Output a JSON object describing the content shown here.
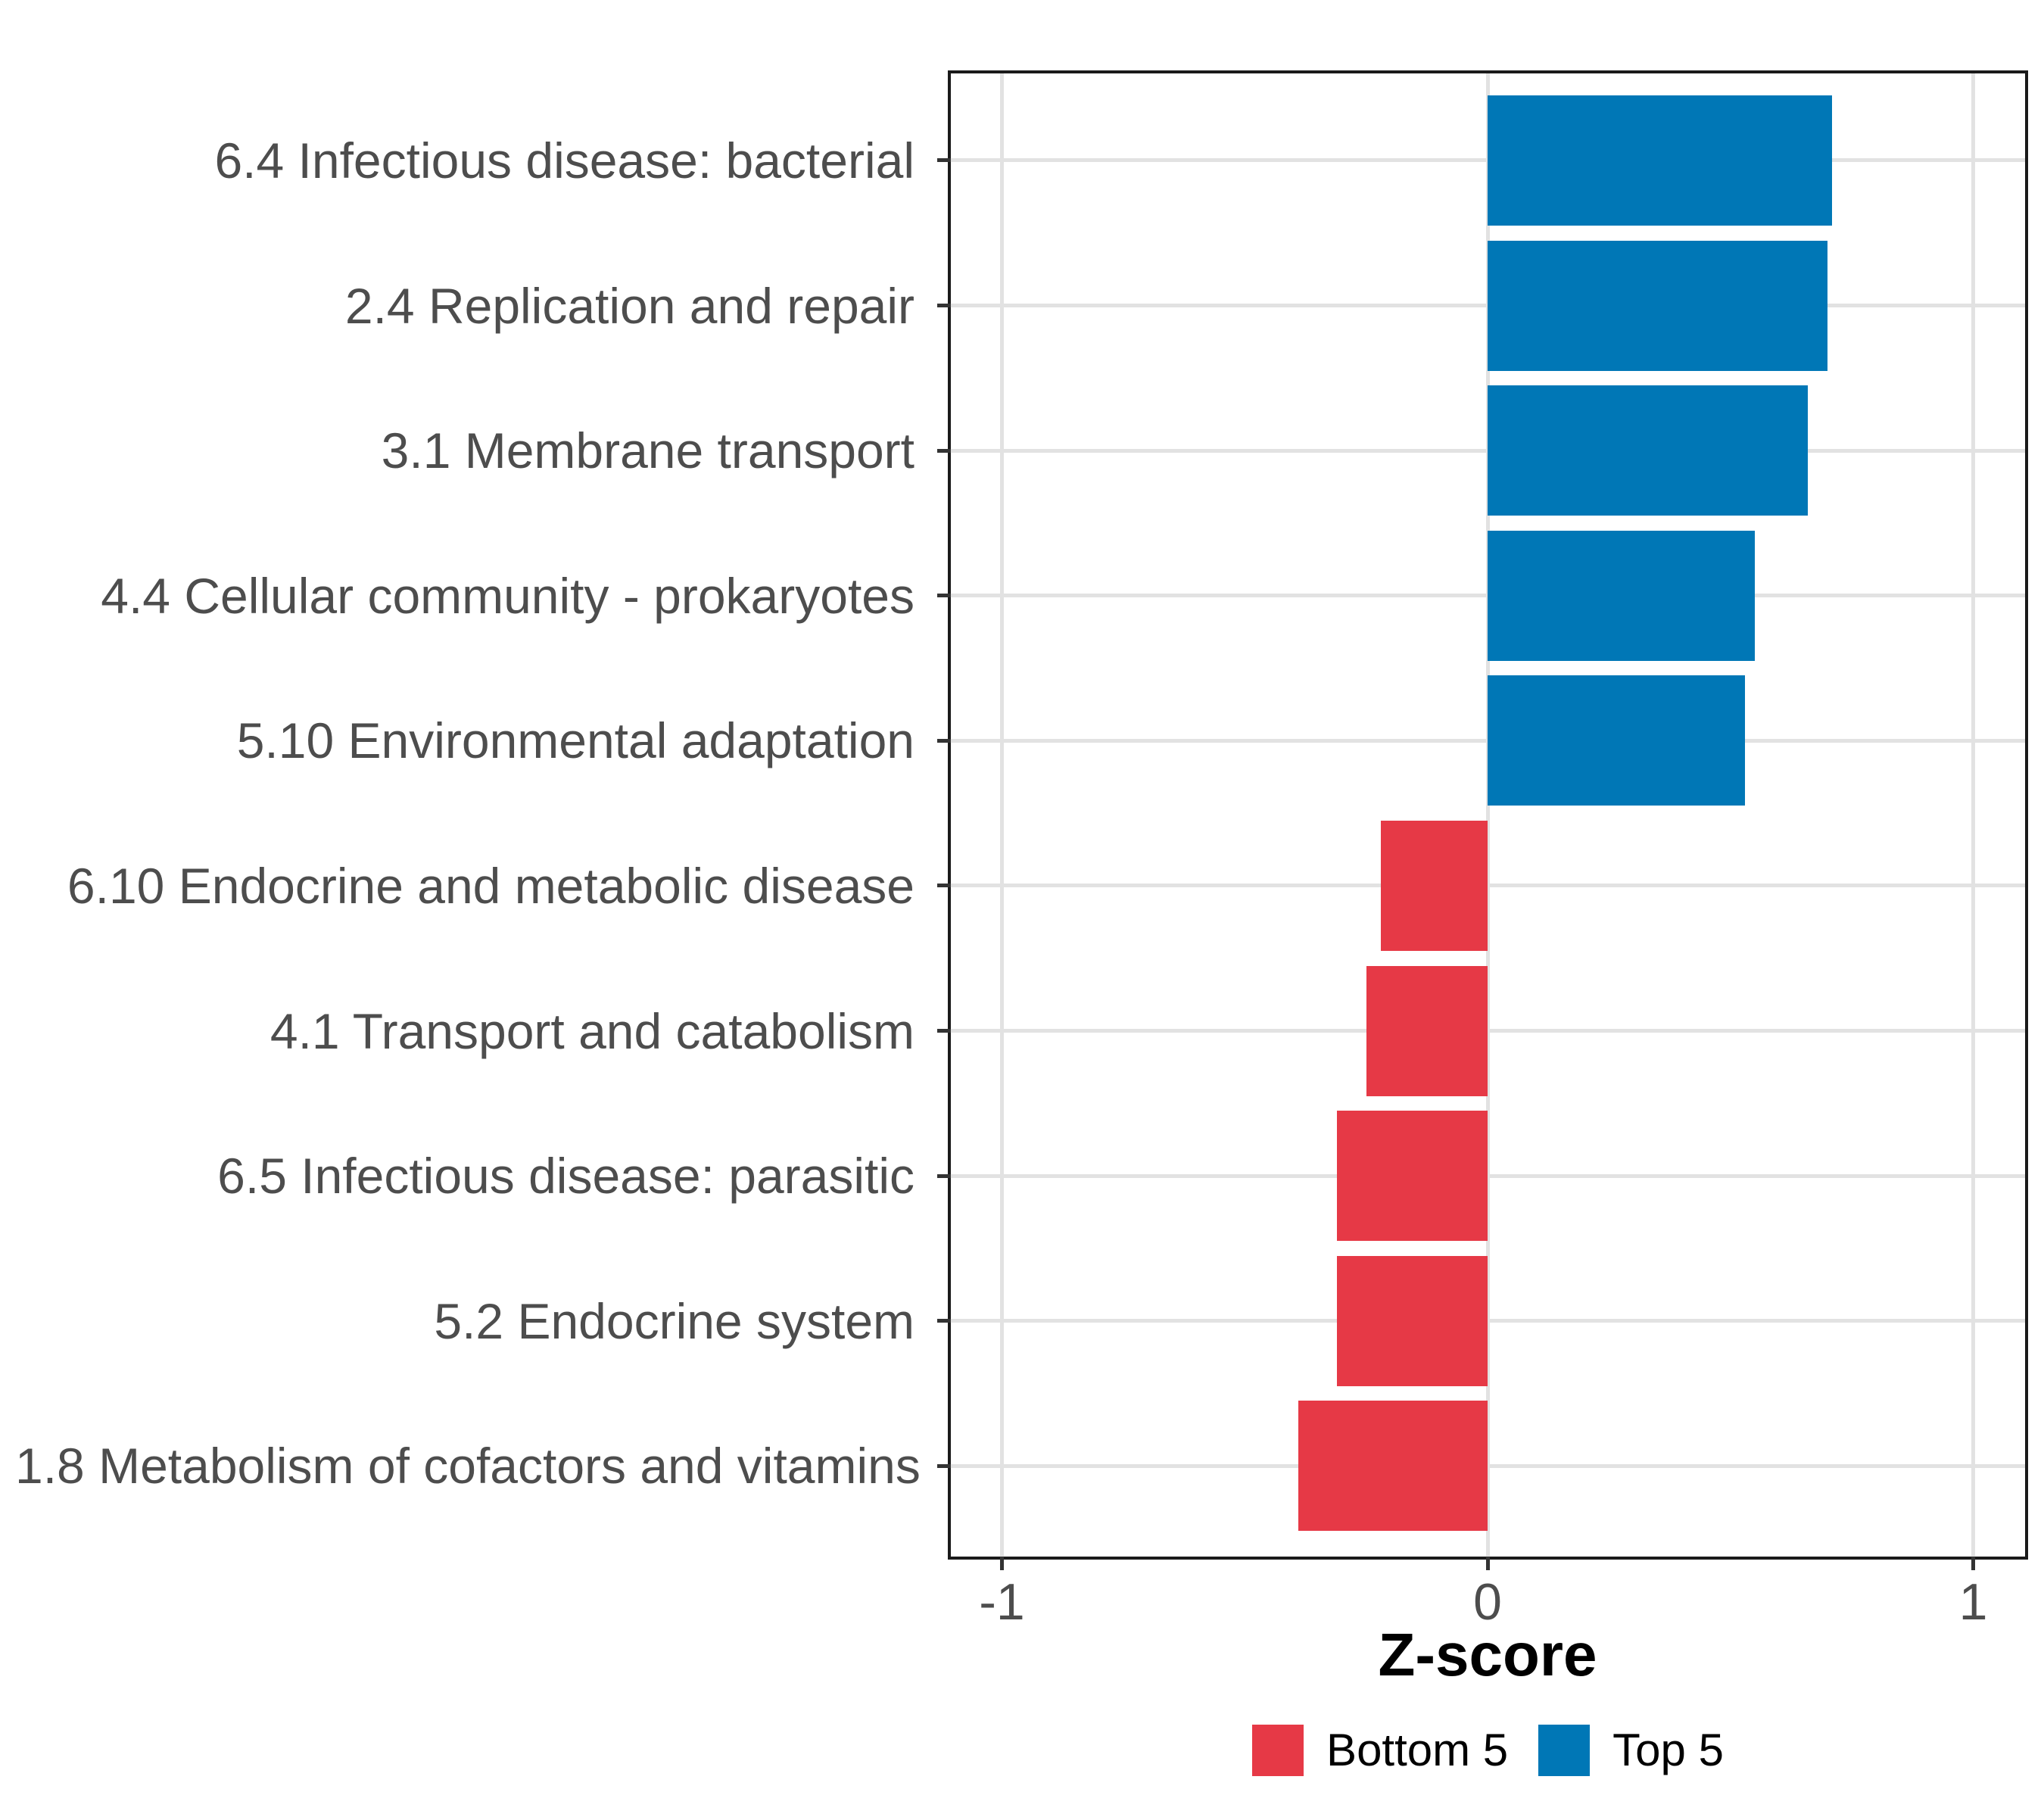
{
  "figure": {
    "background": "#FFFFFF"
  },
  "chart_data": {
    "type": "bar",
    "orientation": "horizontal",
    "title": "",
    "xlabel": "Z-score",
    "ylabel": "",
    "xlim": [
      -1.1,
      1.1
    ],
    "x_ticks": [
      -1,
      0,
      1
    ],
    "x_tick_labels": [
      "-1",
      "0",
      "1"
    ],
    "grid": "major-gridlines-only",
    "legend_position": "bottom-center",
    "categories": [
      "6.4 Infectious disease: bacterial",
      "2.4 Replication and repair",
      "3.1 Membrane transport",
      "4.4 Cellular community - prokaryotes",
      "5.10 Environmental adaptation",
      "6.10 Endocrine and metabolic disease",
      "4.1 Transport and catabolism",
      "6.5 Infectious disease: parasitic",
      "5.2 Endocrine system",
      "1.8 Metabolism of cofactors and vitamins"
    ],
    "series": [
      {
        "name": "Z-score",
        "values": [
          0.71,
          0.7,
          0.66,
          0.55,
          0.53,
          -0.22,
          -0.25,
          -0.31,
          -0.31,
          -0.39
        ]
      }
    ],
    "groups": [
      "Top 5",
      "Top 5",
      "Top 5",
      "Top 5",
      "Top 5",
      "Bottom 5",
      "Bottom 5",
      "Bottom 5",
      "Bottom 5",
      "Bottom 5"
    ],
    "legend": [
      {
        "label": "Bottom 5",
        "color": "#E63946"
      },
      {
        "label": "Top 5",
        "color": "#0077B6"
      }
    ],
    "colors": {
      "Top 5": "#0077B6",
      "Bottom 5": "#E63946"
    },
    "axis_text_color": "#4D4D4D",
    "gridline_color": "#E2E2E2",
    "panel_border_color": "#1A1A1A"
  }
}
